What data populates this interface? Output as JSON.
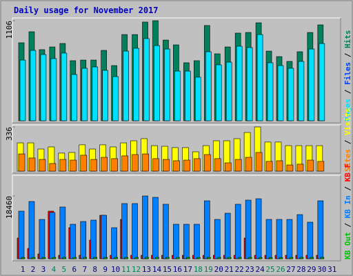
{
  "title": "Daily usage for November 2017",
  "legend_separator": " / ",
  "chart_data": [
    {
      "type": "bar",
      "ylim": [
        0,
        1106
      ],
      "yticks": [
        1106
      ],
      "series": [
        {
          "name": "Hits",
          "color": "#00805c",
          "values": [
            862,
            984,
            786,
            816,
            854,
            664,
            671,
            671,
            778,
            610,
            953,
            953,
            1091,
            1106,
            892,
            839,
            641,
            664,
            1053,
            740,
            816,
            969,
            976,
            1083,
            770,
            709,
            656,
            763,
            976,
            1060,
            null
          ]
        },
        {
          "name": "Files",
          "color": "#0040ff",
          "values": [
            null,
            null,
            null,
            null,
            null,
            null,
            null,
            null,
            null,
            null,
            null,
            null,
            null,
            null,
            null,
            null,
            null,
            null,
            null,
            null,
            null,
            null,
            null,
            null,
            null,
            null,
            null,
            null,
            null,
            null,
            null
          ]
        },
        {
          "name": "Pages",
          "color": "#00e0ff",
          "values": [
            671,
            778,
            732,
            687,
            748,
            511,
            580,
            595,
            557,
            488,
            770,
            801,
            908,
            831,
            793,
            549,
            549,
            481,
            763,
            618,
            648,
            824,
            809,
            953,
            641,
            610,
            580,
            656,
            793,
            854,
            null
          ]
        }
      ]
    },
    {
      "type": "bar",
      "ylim": [
        0,
        336
      ],
      "yticks": [
        336
      ],
      "series": [
        {
          "name": "Visits",
          "color": "#ffff00",
          "values": [
            215,
            215,
            168,
            184,
            137,
            142,
            200,
            168,
            200,
            184,
            215,
            231,
            247,
            194,
            189,
            179,
            179,
            147,
            194,
            231,
            231,
            247,
            294,
            336,
            221,
            221,
            194,
            194,
            194,
            194,
            null
          ]
        },
        {
          "name": "Sites",
          "color": "#ff8000",
          "values": [
            131,
            100,
            89,
            58,
            89,
            84,
            121,
            89,
            105,
            95,
            116,
            126,
            131,
            95,
            89,
            79,
            84,
            95,
            126,
            95,
            63,
            89,
            105,
            142,
            74,
            79,
            47,
            53,
            84,
            74,
            null
          ]
        }
      ]
    },
    {
      "type": "bar",
      "ylim": [
        0,
        18460
      ],
      "yticks": [
        18460
      ],
      "categories": [
        "1",
        "2",
        "3",
        "4",
        "5",
        "6",
        "7",
        "8",
        "9",
        "10",
        "11",
        "12",
        "13",
        "14",
        "15",
        "16",
        "17",
        "18",
        "19",
        "20",
        "21",
        "22",
        "23",
        "24",
        "25",
        "26",
        "27",
        "28",
        "29",
        "30",
        "31"
      ],
      "highlighted": [
        3,
        4,
        10,
        11,
        17,
        18,
        24,
        25
      ],
      "highlight_color": "#00805c",
      "label_color": "#000080",
      "series": [
        {
          "name": "KB F",
          "color": "#ff0000",
          "values": [
            6086,
            3043,
            1420,
            13997,
            1014,
            9129,
            1014,
            5477,
            12780,
            1014,
            11563,
            1014,
            1014,
            1014,
            1014,
            1014,
            1014,
            1014,
            1014,
            1014,
            1014,
            1014,
            6086,
            1014,
            1014,
            1014,
            1014,
            1014,
            1014,
            1014,
            null
          ]
        },
        {
          "name": "KB In",
          "color": "#0080ff",
          "values": [
            13997,
            16837,
            11563,
            13592,
            15215,
            10143,
            10954,
            11360,
            12780,
            9129,
            16229,
            16229,
            18460,
            18054,
            16026,
            10143,
            10143,
            10143,
            17040,
            11563,
            13389,
            16026,
            17243,
            17649,
            11563,
            11563,
            11563,
            12983,
            10752,
            17040,
            null
          ]
        },
        {
          "name": "KB Out",
          "color": "#00c000",
          "values": [
            400,
            400,
            400,
            400,
            400,
            400,
            400,
            400,
            400,
            400,
            400,
            400,
            400,
            400,
            400,
            400,
            400,
            400,
            400,
            400,
            400,
            400,
            400,
            400,
            400,
            400,
            400,
            400,
            400,
            400,
            null
          ]
        }
      ]
    }
  ]
}
